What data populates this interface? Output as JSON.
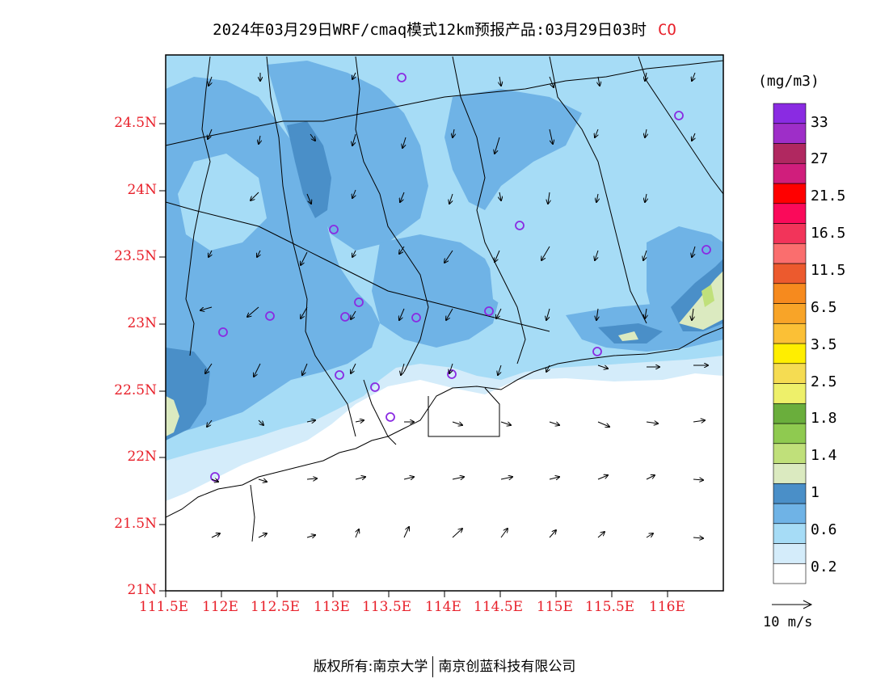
{
  "title": {
    "main": "2024年03月29日WRF/cmaq模式12km预报产品:03月29日03时",
    "species": "CO"
  },
  "axes": {
    "y_ticks": [
      "24.5N",
      "24N",
      "23.5N",
      "23N",
      "22.5N",
      "22N",
      "21.5N",
      "21N"
    ],
    "x_ticks": [
      "111.5E",
      "112E",
      "112.5E",
      "113E",
      "113.5E",
      "114E",
      "114.5E",
      "115E",
      "115.5E",
      "116E"
    ]
  },
  "colorbar": {
    "unit": "(mg/m3)",
    "labels": [
      "33",
      "27",
      "21.5",
      "16.5",
      "11.5",
      "6.5",
      "3.5",
      "2.5",
      "1.8",
      "1.4",
      "1",
      "0.6",
      "0.2"
    ],
    "colors": [
      "#ffffff",
      "#d4ecfa",
      "#a6dcf6",
      "#6fb3e6",
      "#4a8fc8",
      "#dbeac0",
      "#c0e07a",
      "#8fca50",
      "#6aae3c",
      "#eef06a",
      "#f5dc52",
      "#ffee00",
      "#fbc036",
      "#f8a428",
      "#f68a1e",
      "#ec5a2e",
      "#fa6e6e",
      "#f2345a",
      "#fa0a5a",
      "#ff0000",
      "#d01e7c",
      "#b02860",
      "#9e2ec8",
      "#8a2be2"
    ]
  },
  "wind_legend": {
    "label": "10 m/s"
  },
  "footer": {
    "left": "版权所有:南京大学",
    "right": "南京创蓝科技有限公司"
  }
}
